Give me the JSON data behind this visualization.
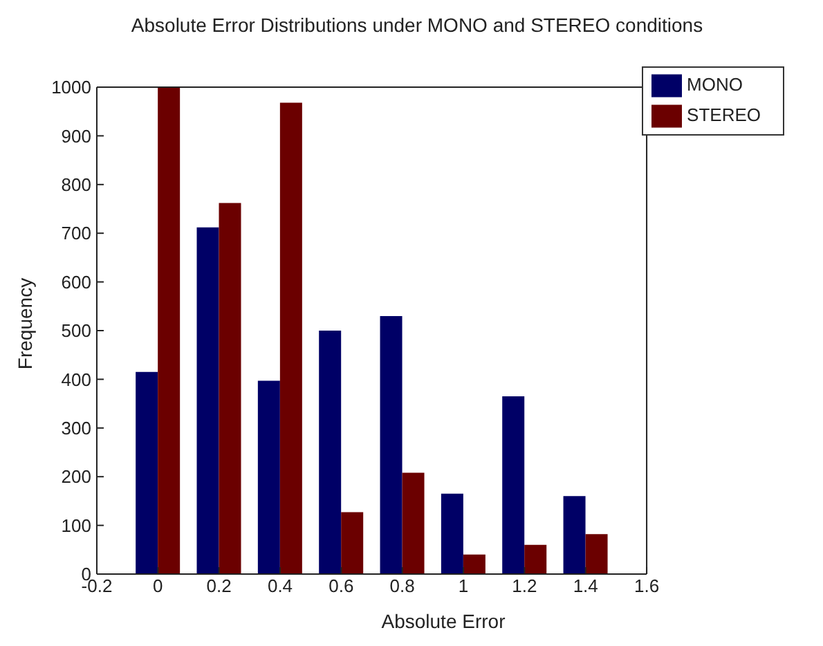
{
  "chart_data": {
    "type": "bar",
    "title": "Absolute Error Distributions under MONO and STEREO conditions",
    "xlabel": "Absolute Error",
    "ylabel": "Frequency",
    "x": [
      0,
      0.2,
      0.4,
      0.6,
      0.8,
      1,
      1.2,
      1.4
    ],
    "series": [
      {
        "name": "MONO",
        "color": "#000066",
        "values": [
          415,
          712,
          397,
          500,
          530,
          165,
          365,
          160
        ]
      },
      {
        "name": "STEREO",
        "color": "#6b0000",
        "values": [
          1000,
          762,
          968,
          127,
          208,
          40,
          60,
          82
        ]
      }
    ],
    "xlim": [
      -0.2,
      1.6
    ],
    "xticks": [
      -0.2,
      0,
      0.2,
      0.4,
      0.6,
      0.8,
      1,
      1.2,
      1.4,
      1.6
    ],
    "ylim": [
      0,
      1000
    ],
    "yticks": [
      0,
      100,
      200,
      300,
      400,
      500,
      600,
      700,
      800,
      900,
      1000
    ],
    "grid": false,
    "legend": "top right"
  }
}
